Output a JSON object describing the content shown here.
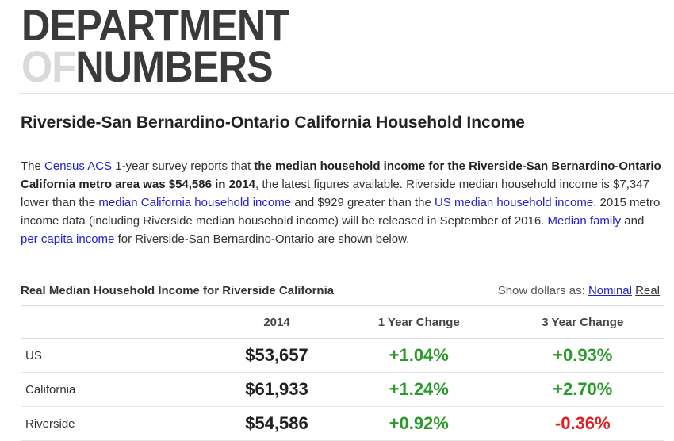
{
  "logo": {
    "line1": "DEPARTMENT",
    "of": "OF",
    "numbers": "NUMBERS"
  },
  "title": "Riverside-San Bernardino-Ontario California Household Income",
  "intro": {
    "t1": "The ",
    "link_census": "Census ACS",
    "t2": " 1-year survey reports that ",
    "bold1": "the median household income for the Riverside-San Bernardino-Ontario California metro area was $54,586 in 2014",
    "t3": ", the latest figures available. Riverside median household income is $7,347 lower than the ",
    "link_ca": "median California household income",
    "t4": " and $929 greater than the ",
    "link_us": "US median household income",
    "t5": ". 2015 metro income data (including Riverside median household income) will be released in September of 2016. ",
    "link_family": "Median family",
    "t6": " and ",
    "link_percap": "per capita income",
    "t7": " for Riverside-San Bernardino-Ontario are shown below."
  },
  "table": {
    "title": "Real Median Household Income for Riverside California",
    "show_dollars_label": "Show dollars as:",
    "nominal": "Nominal",
    "real": "Real",
    "headers": [
      "",
      "2014",
      "1 Year Change",
      "3 Year Change"
    ],
    "rows": [
      {
        "location": "US",
        "value": "$53,657",
        "one_year": "+1.04%",
        "three_year": "+0.93%"
      },
      {
        "location": "California",
        "value": "$61,933",
        "one_year": "+1.24%",
        "three_year": "+2.70%"
      },
      {
        "location": "Riverside",
        "value": "$54,586",
        "one_year": "+0.92%",
        "three_year": "-0.36%"
      }
    ]
  },
  "colors": {
    "positive": "#2a9a2a",
    "negative": "#e0201e",
    "link": "#2222cc"
  }
}
